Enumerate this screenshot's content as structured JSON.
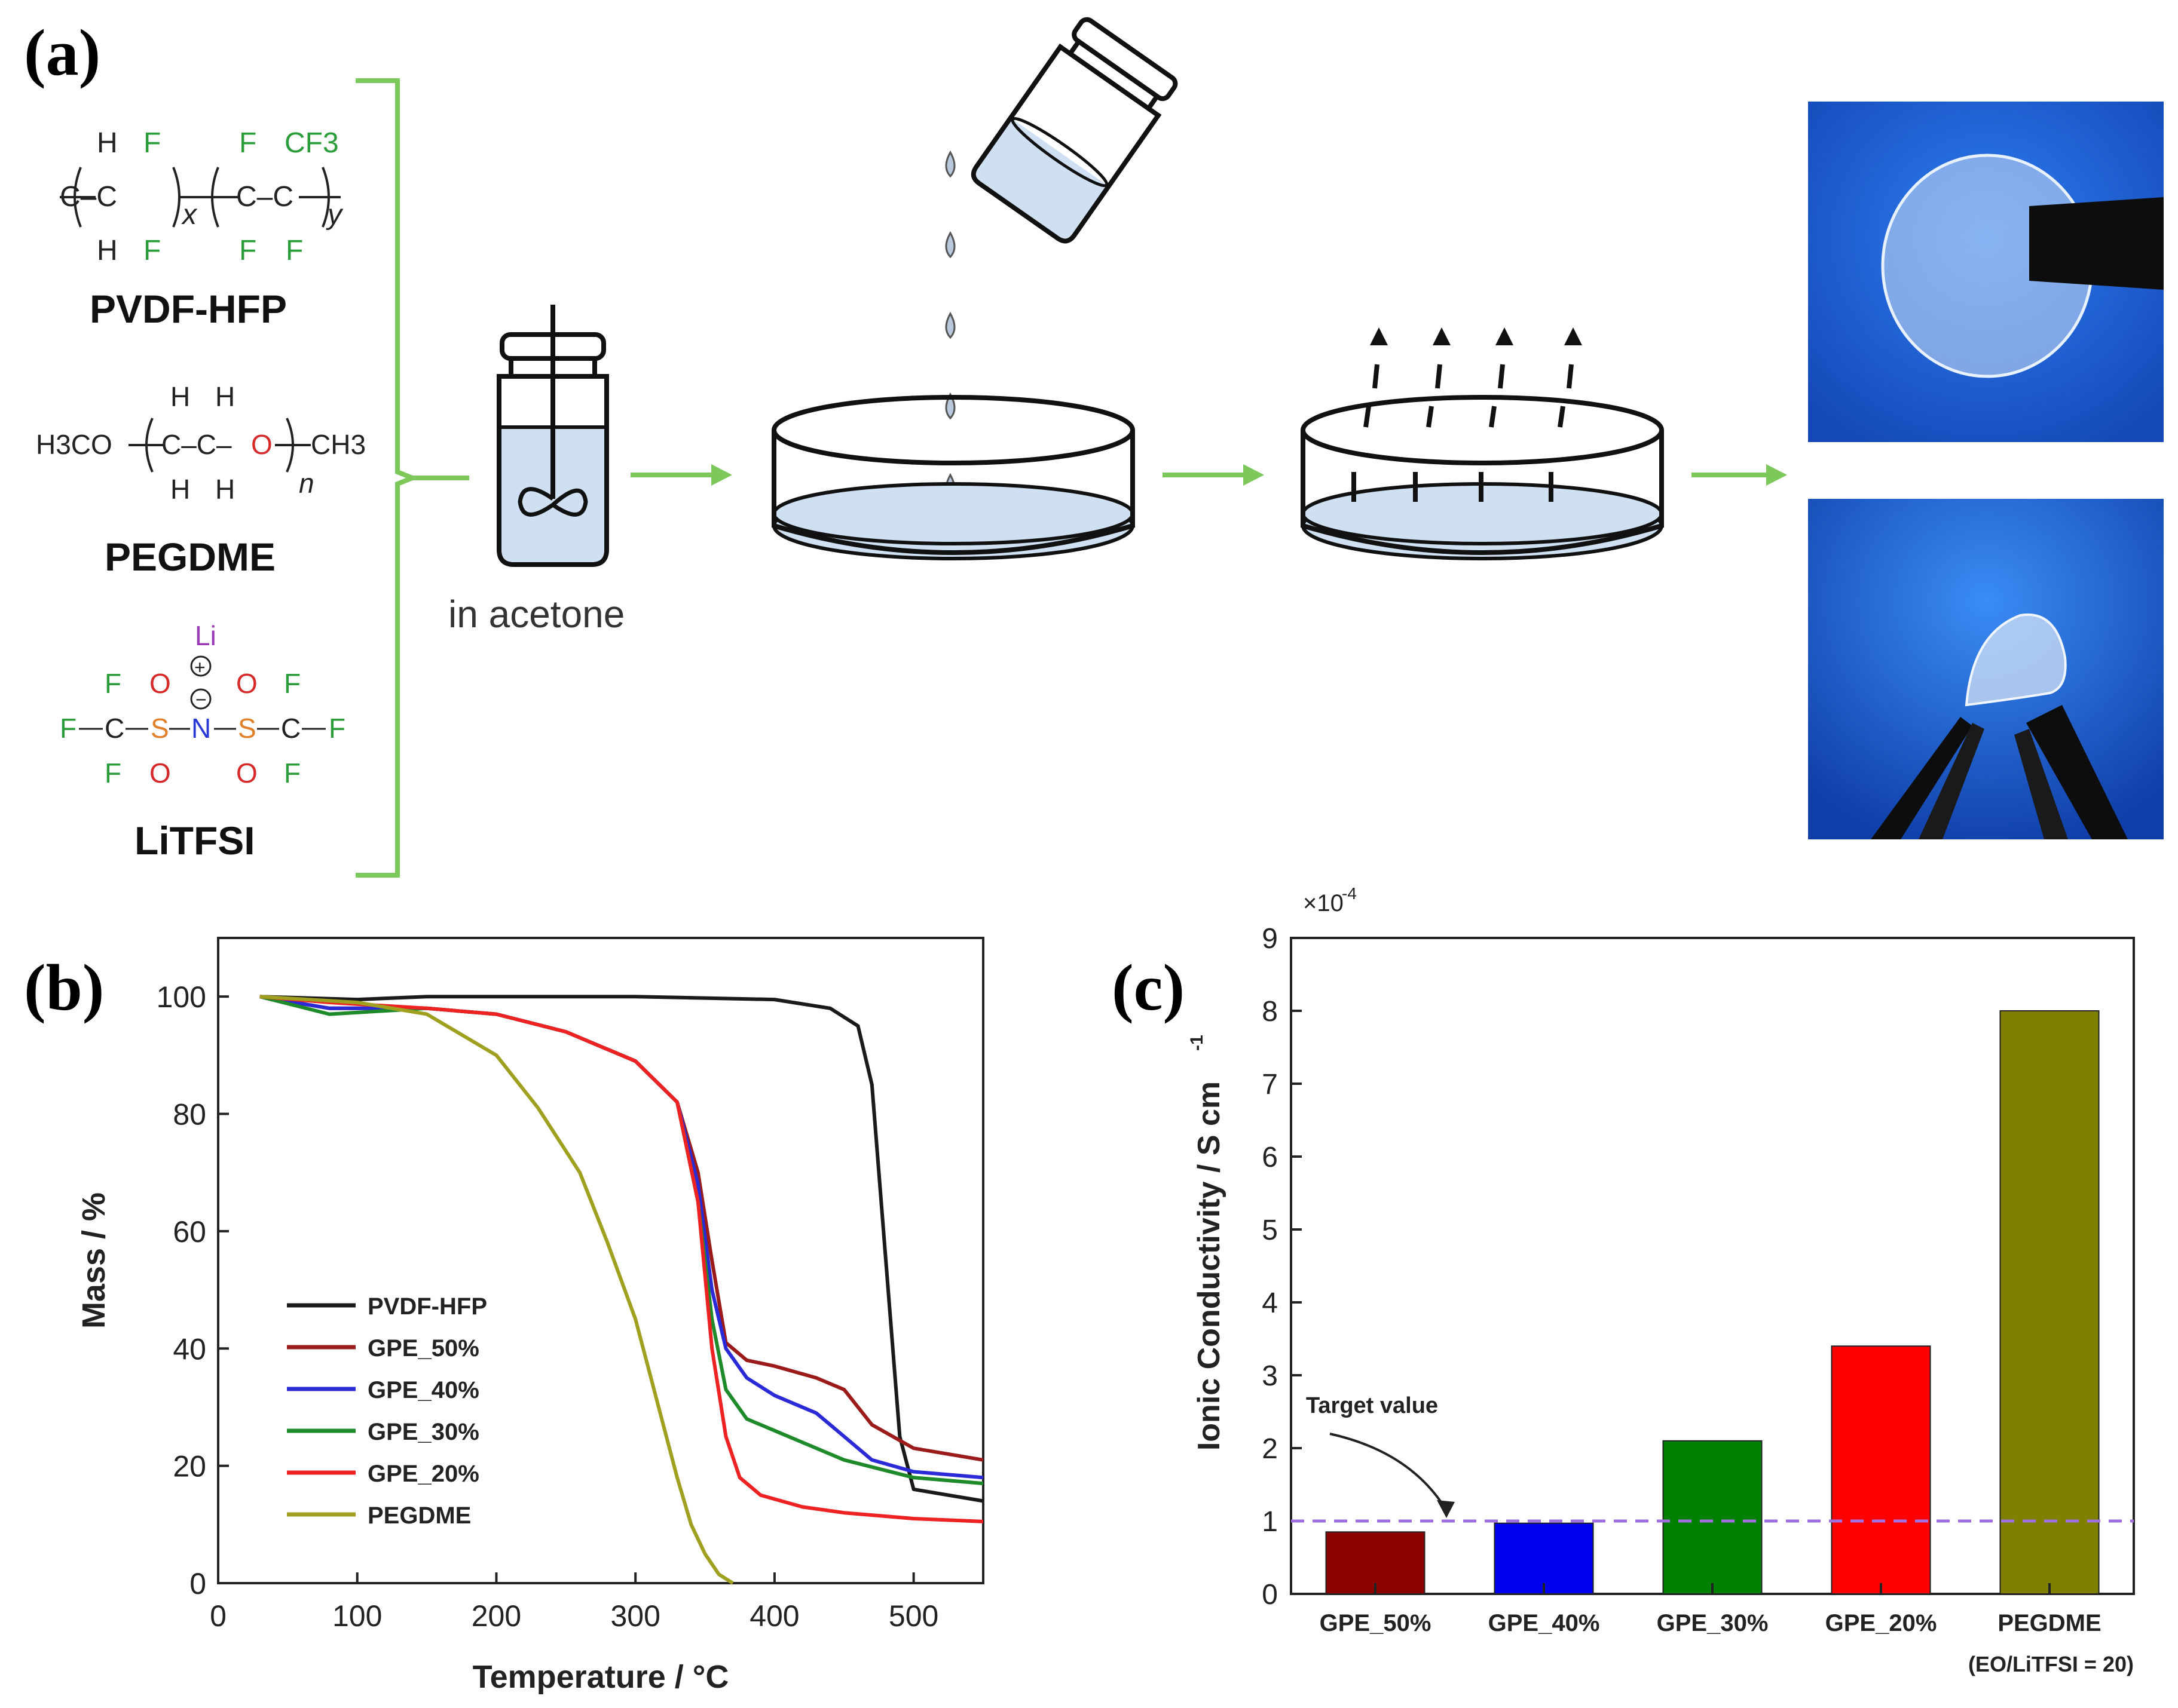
{
  "panel_a": {
    "label": "(a)",
    "compounds": [
      {
        "name": "PVDF-HFP"
      },
      {
        "name": "PEGDME"
      },
      {
        "name": "LiTFSI"
      }
    ],
    "pvdf": {
      "top": [
        "H",
        "F",
        "F",
        "CF3"
      ],
      "bottom": [
        "H",
        "F",
        "F",
        "F"
      ],
      "sub_x": "x",
      "sub_y": "y"
    },
    "pegdme": {
      "left": "H3CO",
      "right": "CH3",
      "top": [
        "H",
        "H"
      ],
      "bottom": [
        "H",
        "H"
      ],
      "sub_n": "n"
    },
    "litfsi": {
      "li": "Li",
      "plus": "+",
      "minus": "−"
    },
    "solvent_label": "in acetone",
    "colors": {
      "arrow": "#7cc85a",
      "bracket": "#7cc85a",
      "liquid": "#cfe0f2",
      "photo_bg": "#1a5fd0"
    }
  },
  "panel_b": {
    "label": "(b)"
  },
  "panel_c": {
    "label": "(c)",
    "target_label": "Target value",
    "note": "(EO/LiTFSI = 20)",
    "multiplier": "×10",
    "multiplier_exp": "-4"
  },
  "chart_data": [
    {
      "type": "line",
      "xlabel": "Temperature / °C",
      "ylabel": "Mass / %",
      "xlim": [
        0,
        550
      ],
      "ylim": [
        0,
        110
      ],
      "xticks": [
        0,
        100,
        200,
        300,
        400,
        500
      ],
      "yticks": [
        0,
        20,
        40,
        60,
        80,
        100
      ],
      "legend_position": "left",
      "series": [
        {
          "name": "PVDF-HFP",
          "color": "#1a1a1a",
          "x": [
            30,
            100,
            150,
            200,
            300,
            400,
            440,
            460,
            470,
            480,
            490,
            500,
            550
          ],
          "y": [
            100,
            99.5,
            100,
            100,
            100,
            99.5,
            98,
            95,
            85,
            55,
            25,
            16,
            14
          ]
        },
        {
          "name": "GPE_50%",
          "color": "#9b1b1b",
          "x": [
            30,
            80,
            150,
            200,
            250,
            300,
            330,
            345,
            355,
            365,
            380,
            400,
            430,
            450,
            470,
            500,
            550
          ],
          "y": [
            100,
            98,
            98,
            97,
            94,
            89,
            82,
            70,
            55,
            41,
            38,
            37,
            35,
            33,
            27,
            23,
            21
          ]
        },
        {
          "name": "GPE_40%",
          "color": "#2a2ad6",
          "x": [
            30,
            80,
            150,
            200,
            250,
            300,
            330,
            345,
            355,
            365,
            380,
            400,
            430,
            450,
            470,
            500,
            550
          ],
          "y": [
            100,
            98,
            98,
            97,
            94,
            89,
            82,
            68,
            50,
            40,
            35,
            32,
            29,
            25,
            21,
            19,
            18
          ]
        },
        {
          "name": "GPE_30%",
          "color": "#1e8a2a",
          "x": [
            30,
            80,
            150,
            200,
            250,
            300,
            330,
            345,
            355,
            365,
            380,
            400,
            450,
            500,
            550
          ],
          "y": [
            100,
            97,
            98,
            97,
            94,
            89,
            82,
            65,
            45,
            33,
            28,
            26,
            21,
            18,
            17
          ]
        },
        {
          "name": "GPE_20%",
          "color": "#ee2222",
          "x": [
            30,
            80,
            150,
            200,
            250,
            300,
            330,
            345,
            355,
            365,
            375,
            390,
            420,
            450,
            500,
            550
          ],
          "y": [
            100,
            99,
            98,
            97,
            94,
            89,
            82,
            65,
            40,
            25,
            18,
            15,
            13,
            12,
            11,
            10.5
          ]
        },
        {
          "name": "PEGDME",
          "color": "#a0a020",
          "x": [
            30,
            100,
            150,
            200,
            230,
            260,
            280,
            300,
            310,
            320,
            330,
            340,
            350,
            360,
            370
          ],
          "y": [
            100,
            99,
            97,
            90,
            81,
            70,
            58,
            45,
            36,
            27,
            18,
            10,
            5,
            1.5,
            0
          ]
        }
      ]
    },
    {
      "type": "bar",
      "ylabel": "Ionic Conductivity  / S cm",
      "ylabel_exp": "-1",
      "ylim": [
        0,
        9
      ],
      "yticks": [
        0,
        1,
        2,
        3,
        4,
        5,
        6,
        7,
        8,
        9
      ],
      "categories": [
        "GPE_50%",
        "GPE_40%",
        "GPE_30%",
        "GPE_20%",
        "PEGDME"
      ],
      "values": [
        0.85,
        0.97,
        2.1,
        3.4,
        8.0
      ],
      "colors": [
        "#8b0000",
        "#0000ee",
        "#008000",
        "#ff0000",
        "#808000"
      ],
      "target_value": 1.0,
      "target_color": "#a070e0"
    }
  ]
}
